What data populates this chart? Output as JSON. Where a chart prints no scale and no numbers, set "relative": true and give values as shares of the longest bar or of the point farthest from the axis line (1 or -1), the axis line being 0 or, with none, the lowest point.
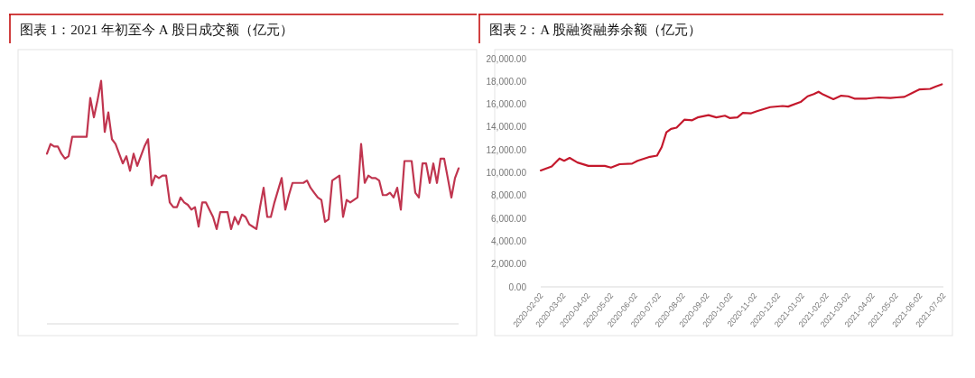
{
  "chart_data": [
    {
      "type": "line",
      "title": "图表 1：2021 年初至今 A 股日成交额（亿元）",
      "relative": true,
      "categories": [
        null,
        null,
        null,
        null,
        null,
        null,
        null,
        null,
        null,
        null,
        null,
        null,
        null,
        null,
        null,
        null,
        null,
        null,
        null,
        null,
        null,
        null,
        null,
        null,
        null,
        null,
        null,
        null,
        null,
        null,
        null,
        null,
        null,
        null,
        null,
        null,
        null,
        null,
        null,
        null,
        null,
        null,
        null,
        null,
        null,
        null,
        null,
        null,
        null,
        null,
        null,
        null,
        null,
        null,
        null,
        null,
        null,
        null,
        null,
        null,
        null,
        null,
        null,
        null,
        null,
        null,
        null,
        null,
        null,
        null,
        null,
        null,
        null,
        null,
        null,
        null,
        null,
        null,
        null,
        null,
        null,
        null,
        null,
        null,
        null,
        null,
        null,
        null,
        null,
        null,
        null,
        null,
        null,
        null,
        null,
        null,
        null,
        null,
        null,
        null,
        null,
        null,
        null,
        null,
        null,
        null,
        null,
        null,
        null,
        null,
        null,
        null,
        null,
        null,
        null
      ],
      "series": [
        {
          "color": "#c0354f",
          "values": [
            0.7,
            0.74,
            0.73,
            0.73,
            0.7,
            0.68,
            0.69,
            0.77,
            0.77,
            0.77,
            0.77,
            0.77,
            0.93,
            0.85,
            0.92,
            1.0,
            0.79,
            0.87,
            0.76,
            0.74,
            0.7,
            0.66,
            0.69,
            0.63,
            0.7,
            0.65,
            0.69,
            0.73,
            0.76,
            0.57,
            0.61,
            0.6,
            0.61,
            0.61,
            0.5,
            0.48,
            0.48,
            0.52,
            0.5,
            0.49,
            0.47,
            0.48,
            0.4,
            0.5,
            0.5,
            0.47,
            0.44,
            0.39,
            0.46,
            0.46,
            0.46,
            0.39,
            0.44,
            0.41,
            0.45,
            0.44,
            0.41,
            0.4,
            0.39,
            0.48,
            0.56,
            0.44,
            0.44,
            0.5,
            0.55,
            0.6,
            0.47,
            0.53,
            0.58,
            0.58,
            0.58,
            0.58,
            0.59,
            0.56,
            0.54,
            0.52,
            0.51,
            0.42,
            0.43,
            0.59,
            0.6,
            0.61,
            0.44,
            0.51,
            0.5,
            0.51,
            0.52,
            0.74,
            0.58,
            0.61,
            0.6,
            0.6,
            0.59,
            0.53,
            0.53,
            0.54,
            0.52,
            0.56,
            0.47,
            0.67,
            0.67,
            0.67,
            0.54,
            0.52,
            0.66,
            0.66,
            0.58,
            0.66,
            0.58,
            0.68,
            0.68,
            0.6,
            0.52,
            0.6,
            0.64
          ]
        }
      ]
    },
    {
      "type": "line",
      "title": "图表 2：A 股融资融券余额（亿元）",
      "x": [
        "2020-02-02",
        "2020-02-16",
        "2020-02-26",
        "2020-03-03",
        "2020-03-10",
        "2020-03-20",
        "2020-04-03",
        "2020-04-24",
        "2020-05-02",
        "2020-05-13",
        "2020-05-29",
        "2020-06-05",
        "2020-06-21",
        "2020-06-30",
        "2020-07-06",
        "2020-07-12",
        "2020-07-18",
        "2020-07-25",
        "2020-08-04",
        "2020-08-14",
        "2020-08-21",
        "2020-09-04",
        "2020-09-14",
        "2020-09-25",
        "2020-10-01",
        "2020-10-11",
        "2020-10-18",
        "2020-10-28",
        "2020-11-05",
        "2020-11-22",
        "2020-12-08",
        "2020-12-15",
        "2020-12-31",
        "2021-01-09",
        "2021-01-17",
        "2021-01-23",
        "2021-01-29",
        "2021-02-11",
        "2021-02-21",
        "2021-03-02",
        "2021-03-10",
        "2021-03-26",
        "2021-04-10",
        "2021-04-25",
        "2021-05-03",
        "2021-05-13",
        "2021-05-22",
        "2021-06-01",
        "2021-06-15",
        "2021-06-22",
        "2021-06-30"
      ],
      "series": [
        {
          "color": "#c4182c",
          "values": [
            10200,
            10550,
            11250,
            11050,
            11300,
            10900,
            10600,
            10600,
            10450,
            10750,
            10800,
            11050,
            11400,
            11500,
            12250,
            13550,
            13850,
            13950,
            14650,
            14600,
            14850,
            15050,
            14850,
            15000,
            14800,
            14850,
            15250,
            15200,
            15400,
            15750,
            15850,
            15800,
            16200,
            16700,
            16900,
            17100,
            16850,
            16450,
            16750,
            16700,
            16500,
            16500,
            16600,
            16550,
            16600,
            16650,
            16950,
            17300,
            17350,
            17550,
            17750
          ]
        }
      ],
      "ylim": [
        0,
        20000
      ],
      "yticks": [
        {
          "value": 0,
          "label": "0.00"
        },
        {
          "value": 2000,
          "label": "2,000.00"
        },
        {
          "value": 4000,
          "label": "4,000.00"
        },
        {
          "value": 6000,
          "label": "6,000.00"
        },
        {
          "value": 8000,
          "label": "8,000.00"
        },
        {
          "value": 10000,
          "label": "10,000.00"
        },
        {
          "value": 12000,
          "label": "12,000.00"
        },
        {
          "value": 14000,
          "label": "14,000.00"
        },
        {
          "value": 16000,
          "label": "16,000.00"
        },
        {
          "value": 18000,
          "label": "18,000.00"
        },
        {
          "value": 20000,
          "label": "20,000.00"
        }
      ],
      "xlim": [
        "2020-02-02",
        "2021-07-02"
      ],
      "xticks": [
        "2020-02-02",
        "2020-03-02",
        "2020-04-02",
        "2020-05-02",
        "2020-06-02",
        "2020-07-02",
        "2020-08-02",
        "2020-09-02",
        "2020-10-02",
        "2020-11-02",
        "2020-12-02",
        "2021-01-02",
        "2021-02-02",
        "2021-03-02",
        "2021-04-02",
        "2021-05-02",
        "2021-06-02",
        "2021-07-02"
      ]
    }
  ]
}
